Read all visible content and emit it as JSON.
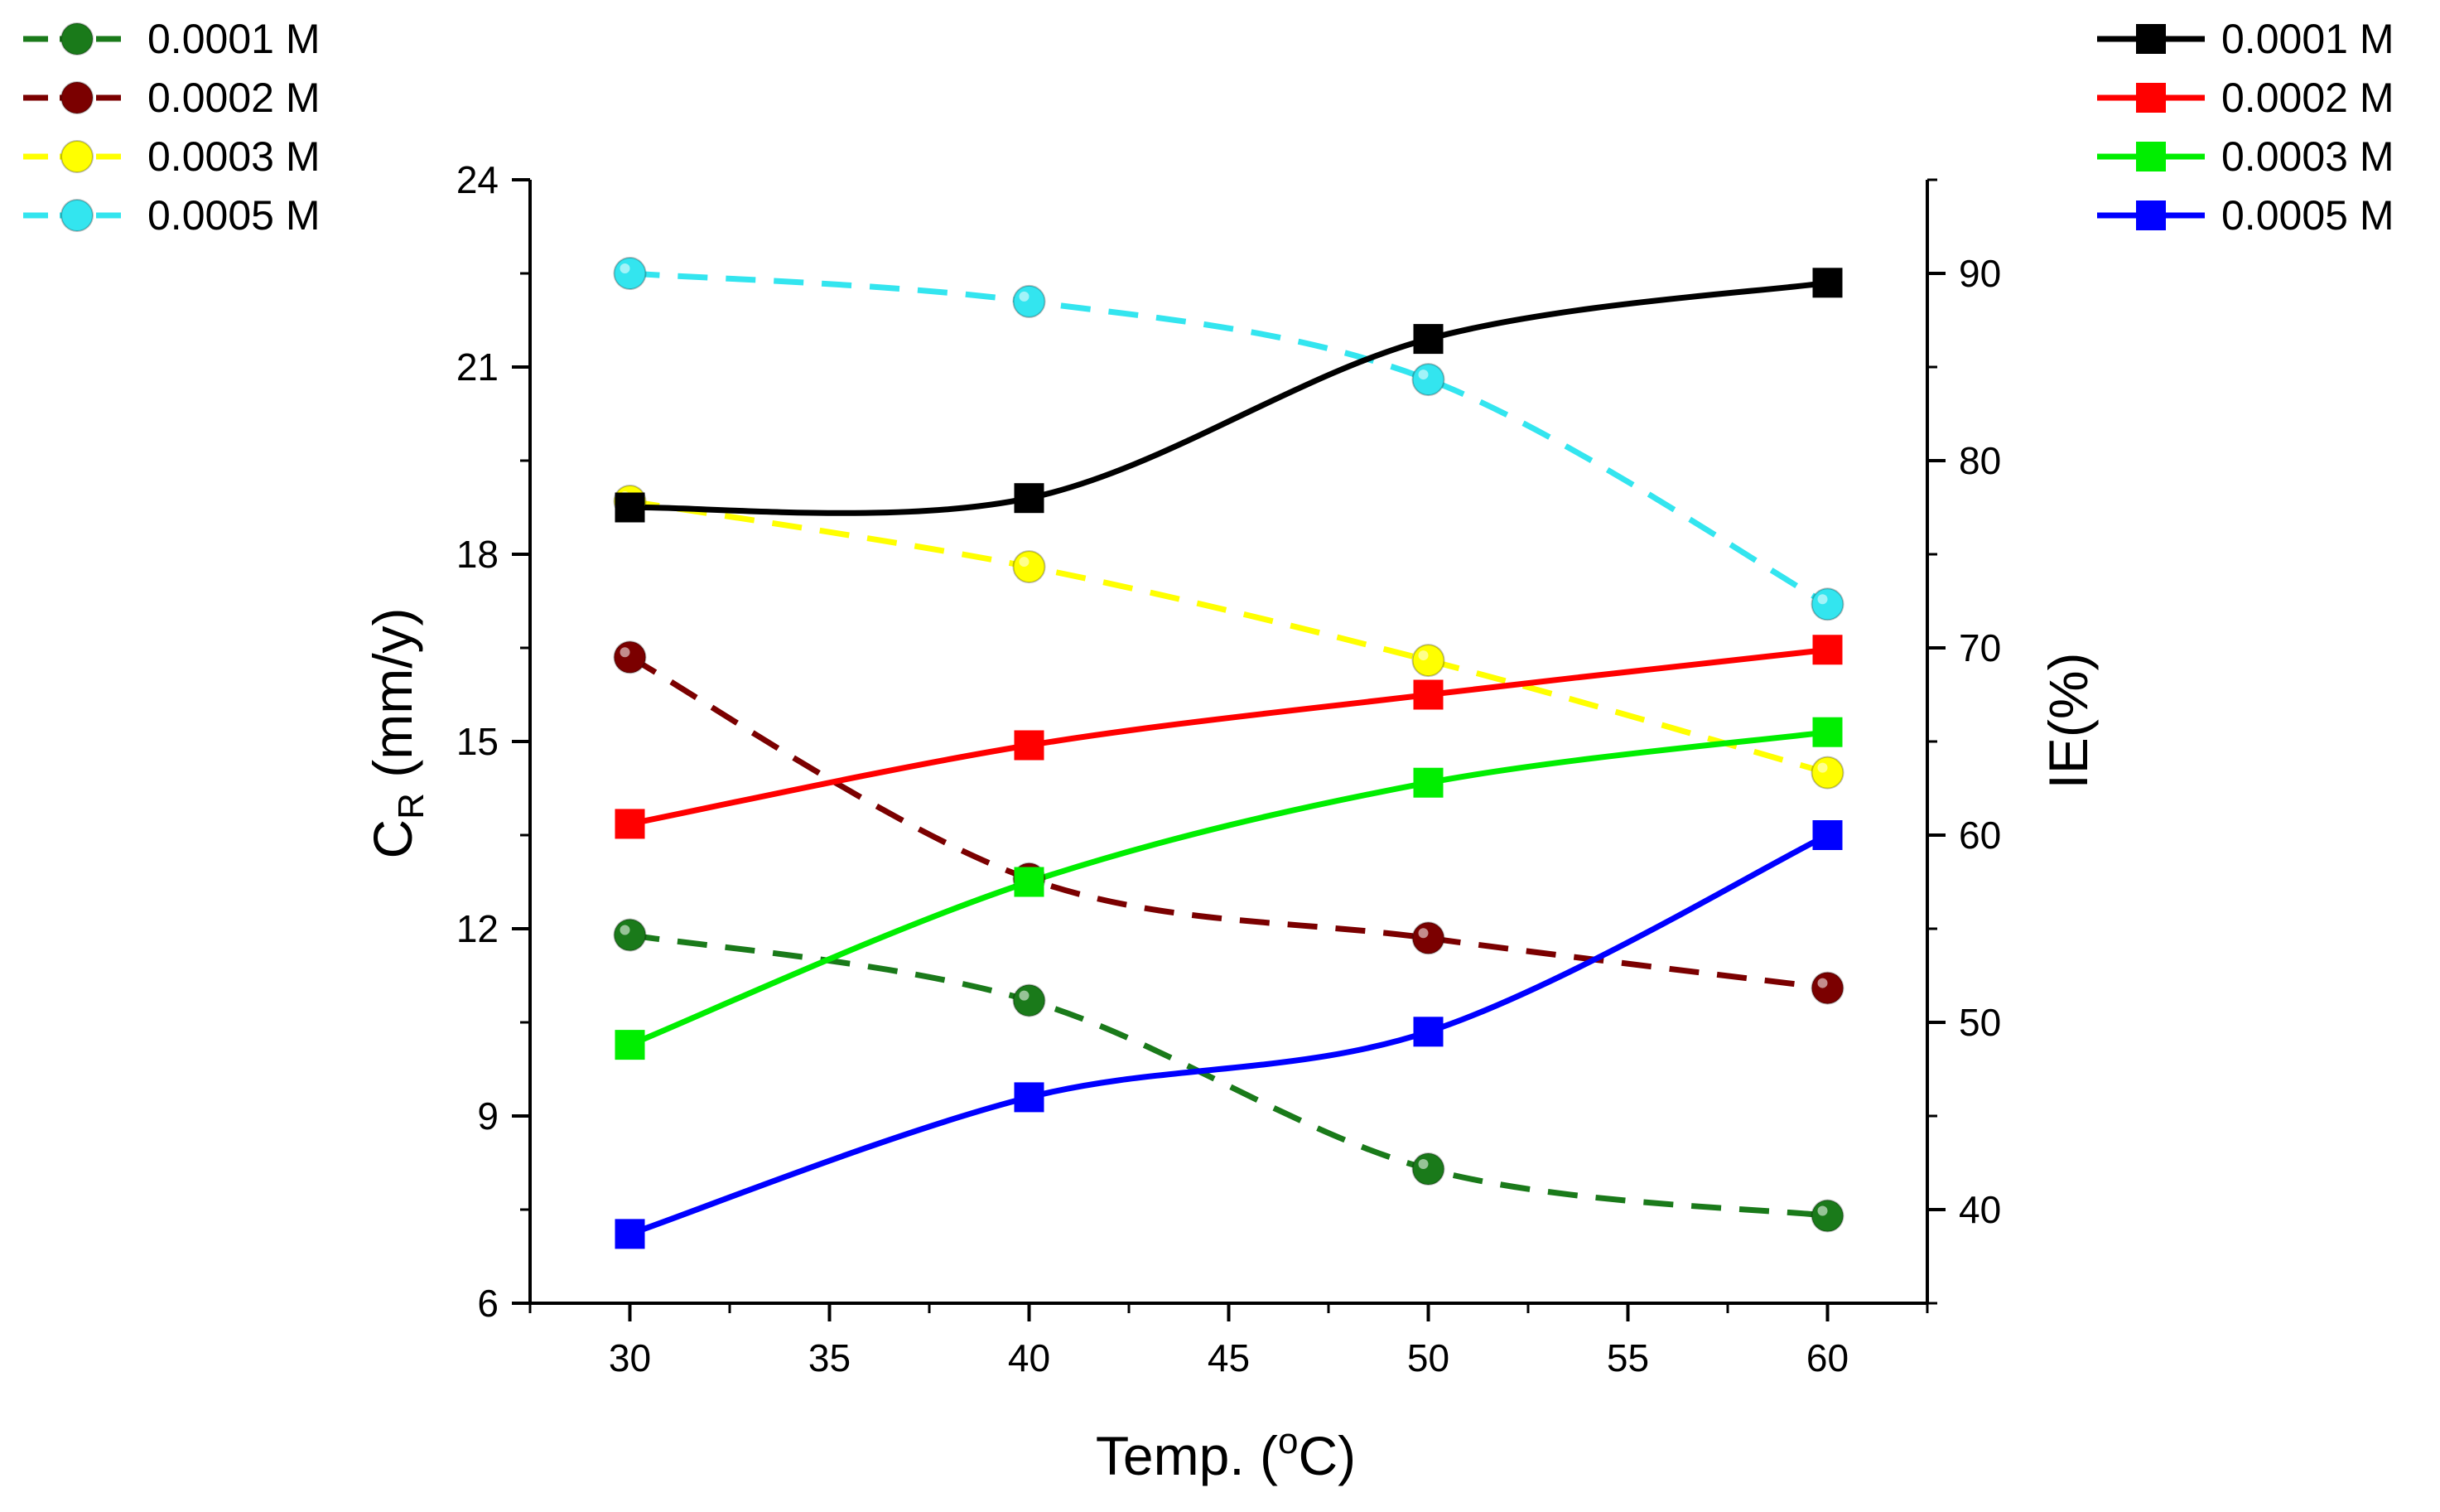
{
  "chart_data": {
    "type": "line",
    "x_axis": {
      "label": "Temp. (",
      "label_sup": "o",
      "label_end": "C)",
      "range": [
        27.5,
        62.5
      ],
      "ticks": [
        30,
        35,
        40,
        45,
        50,
        55,
        60
      ],
      "tick_labels": [
        "30",
        "35",
        "40",
        "45",
        "50",
        "55",
        "60"
      ]
    },
    "left_axis": {
      "label_main": "C",
      "label_sub": "R",
      "label_end": " (mm/y)",
      "range": [
        6,
        24
      ],
      "ticks": [
        6,
        9,
        12,
        15,
        18,
        21,
        24
      ],
      "tick_labels": [
        "6",
        "9",
        "12",
        "15",
        "18",
        "21",
        "24"
      ]
    },
    "right_axis": {
      "label": "IE(%)",
      "range": [
        35,
        95
      ],
      "ticks": [
        40,
        50,
        60,
        70,
        80,
        90
      ],
      "tick_labels": [
        "40",
        "50",
        "60",
        "70",
        "80",
        "90"
      ]
    },
    "x": [
      30,
      40,
      50,
      60
    ],
    "series": [
      {
        "name": "0.0001 M",
        "axis": "left",
        "marker": "circle",
        "line": "dashed",
        "color": "#1a7a1a",
        "values": [
          11.9,
          10.85,
          8.15,
          7.4
        ]
      },
      {
        "name": "0.0002 M",
        "axis": "left",
        "marker": "circle",
        "line": "dashed",
        "color": "#7b0000",
        "values": [
          16.35,
          12.8,
          11.85,
          11.05
        ]
      },
      {
        "name": "0.0003 M",
        "axis": "left",
        "marker": "circle",
        "line": "dashed",
        "color": "#ffff00",
        "values": [
          18.85,
          17.8,
          16.3,
          14.5
        ]
      },
      {
        "name": "0.0005 M",
        "axis": "left",
        "marker": "circle",
        "line": "dashed",
        "color": "#33e5ef",
        "values": [
          22.5,
          22.05,
          20.8,
          17.2
        ]
      },
      {
        "name": "0.0001 M",
        "axis": "right",
        "marker": "square",
        "line": "solid",
        "color": "#000000",
        "values": [
          77.5,
          78,
          86.5,
          89.5
        ]
      },
      {
        "name": "0.0002 M",
        "axis": "right",
        "marker": "square",
        "line": "solid",
        "color": "#ff0000",
        "values": [
          60.6,
          64.8,
          67.5,
          69.9
        ]
      },
      {
        "name": "0.0003 M",
        "axis": "right",
        "marker": "square",
        "line": "solid",
        "color": "#00ee00",
        "values": [
          48.8,
          57.5,
          62.8,
          65.5
        ]
      },
      {
        "name": "0.0005 M",
        "axis": "right",
        "marker": "square",
        "line": "solid",
        "color": "#0000ff",
        "values": [
          38.7,
          46,
          49.5,
          60
        ]
      }
    ],
    "legends": {
      "left": "top-left",
      "right": "top-right"
    }
  }
}
